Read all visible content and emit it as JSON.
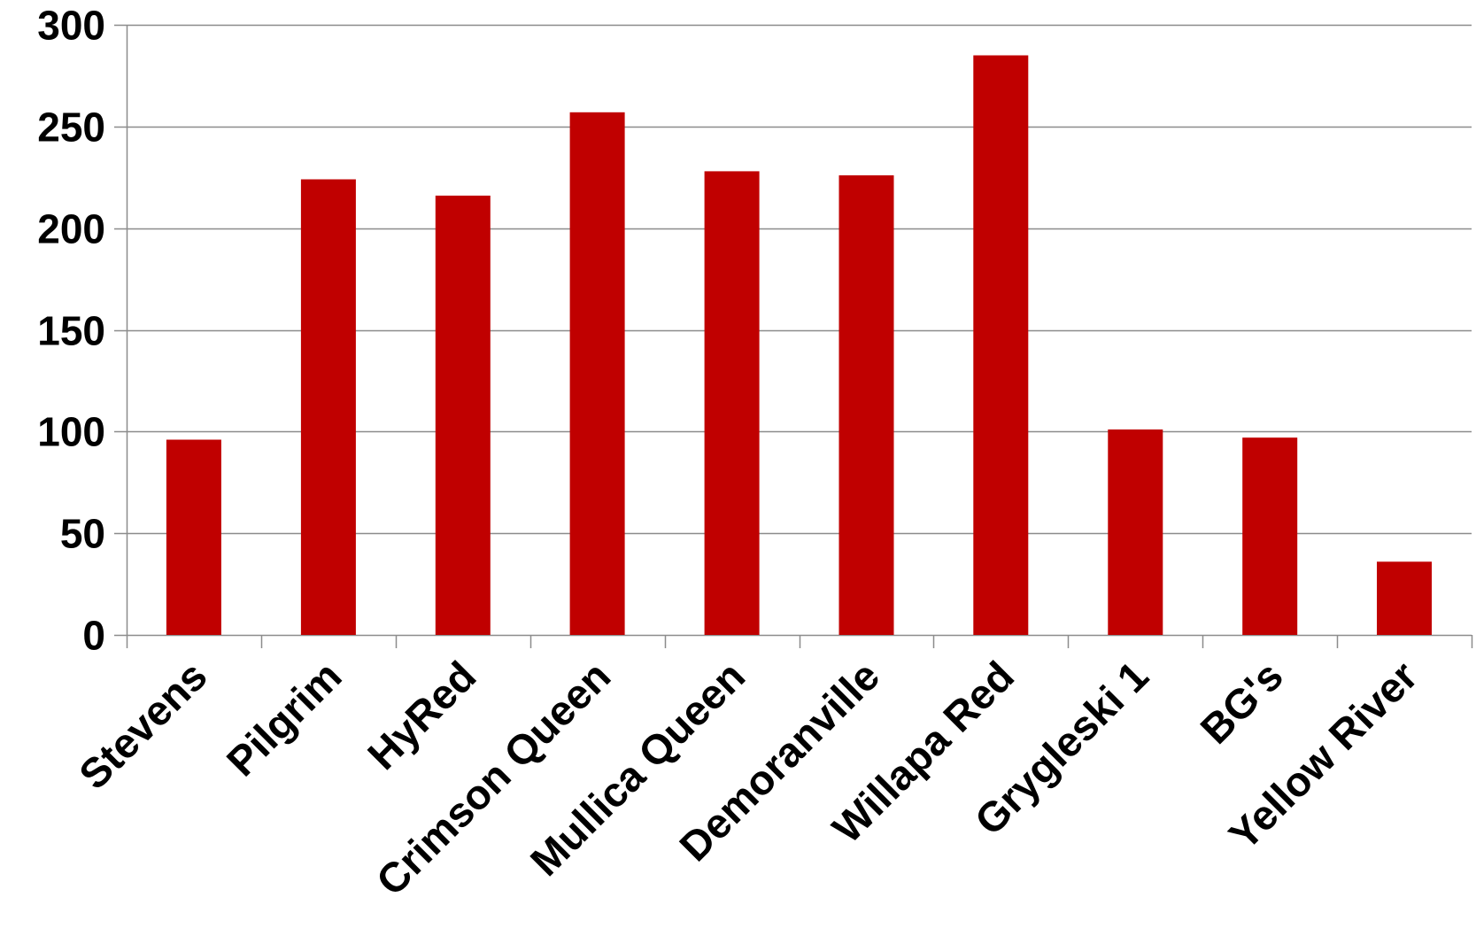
{
  "chart_data": {
    "type": "bar",
    "title": "",
    "xlabel": "",
    "ylabel": "",
    "categories": [
      "Stevens",
      "Pilgrim",
      "HyRed",
      "Crimson Queen",
      "Mullica Queen",
      "Demoranville",
      "Willapa Red",
      "Grygleski 1",
      "BG's",
      "Yellow River"
    ],
    "values": [
      96,
      224,
      216,
      257,
      228,
      226,
      285,
      101,
      97,
      36
    ],
    "ylim": [
      0,
      300
    ],
    "yticks": [
      0,
      50,
      100,
      150,
      200,
      250,
      300
    ],
    "grid": true,
    "legend": "none",
    "colors": {
      "bar": "#C00000",
      "grid": "#8C8C8C",
      "axis": "#8C8C8C",
      "text": "#000000"
    }
  }
}
